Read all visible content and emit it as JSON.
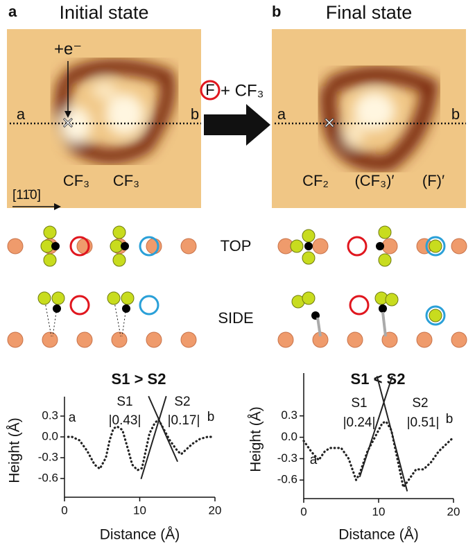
{
  "panels": [
    {
      "letter": "a",
      "title": "Initial state",
      "charge": "+e⁻",
      "end_a": "a",
      "end_b": "b",
      "label_1": "CF₃",
      "label_2": "CF₃",
      "direction": "[11̄0]"
    },
    {
      "letter": "b",
      "title": "Final state",
      "end_a": "a",
      "end_b": "b",
      "label_1": "CF₂",
      "label_2": "(CF₃)′",
      "label_3": "(F)′"
    }
  ],
  "reaction": {
    "circled": "F",
    "rest": "+ CF₃"
  },
  "views": {
    "top": "TOP",
    "side": "SIDE"
  },
  "chart_data": [
    {
      "type": "line",
      "title": "S1 > S2",
      "x_label": "Distance (Å)",
      "y_label": "Height (Å)",
      "annotations": [
        "S1",
        "|0.43|",
        "S2",
        "|0.17|",
        "a",
        "b"
      ],
      "xlim": [
        0,
        20
      ],
      "ylim": [
        -0.87,
        0.58
      ],
      "xticks": [
        0,
        10,
        20
      ],
      "yticks": [
        0.3,
        {
          "value": 0,
          "label": "0.0"
        },
        -0.3,
        -0.6
      ],
      "series": [
        {
          "color": "#222",
          "style": "dotted",
          "x": [
            0.5,
            1,
            2,
            3,
            4,
            4.7,
            5.5,
            6,
            6.5,
            7,
            7.7,
            8.5,
            9,
            9.7,
            10.3,
            10.8,
            11.3,
            12,
            12.5,
            13,
            14,
            15,
            15.5,
            16,
            17,
            18,
            19,
            19.8
          ],
          "values": [
            0.0,
            0.0,
            -0.05,
            -0.2,
            -0.4,
            -0.46,
            -0.3,
            -0.05,
            0.12,
            0.15,
            0.1,
            -0.2,
            -0.4,
            -0.48,
            -0.45,
            -0.2,
            0.05,
            0.2,
            0.25,
            0.15,
            -0.05,
            -0.2,
            -0.25,
            -0.2,
            -0.1,
            -0.03,
            0.0,
            0.0
          ]
        },
        {
          "color": "#222",
          "style": "solid",
          "x": [
            10.2,
            13.5
          ],
          "values": [
            -0.6,
            0.58
          ]
        },
        {
          "color": "#222",
          "style": "solid",
          "x": [
            11.2,
            15
          ],
          "values": [
            0.58,
            -0.35
          ]
        }
      ]
    },
    {
      "type": "line",
      "title": "S1 < S2",
      "x_label": "Distance (Å)",
      "y_label": "Height (Å)",
      "annotations": [
        "S1",
        "|0.24|",
        "S2",
        "|0.51|",
        "a",
        "b"
      ],
      "xlim": [
        0,
        20
      ],
      "ylim": [
        -0.86,
        0.9
      ],
      "xticks": [
        0,
        10,
        20
      ],
      "yticks": [
        0.3,
        {
          "value": 0,
          "label": "0.0"
        },
        -0.3,
        -0.6
      ],
      "series": [
        {
          "color": "#222",
          "style": "dotted",
          "x": [
            0,
            1,
            2,
            2.8,
            3.5,
            5,
            6,
            7,
            7.5,
            8.5,
            9.5,
            10.5,
            11,
            11.7,
            12.5,
            13.3,
            14,
            15,
            16,
            17,
            18,
            19,
            19.8
          ],
          "values": [
            -0.05,
            -0.2,
            -0.32,
            -0.2,
            -0.15,
            -0.15,
            -0.3,
            -0.6,
            -0.5,
            -0.2,
            0.0,
            0.2,
            0.22,
            0.1,
            -0.3,
            -0.7,
            -0.6,
            -0.45,
            -0.45,
            -0.35,
            -0.2,
            -0.1,
            -0.02
          ]
        },
        {
          "color": "#222",
          "style": "solid",
          "x": [
            7.5,
            11.8
          ],
          "values": [
            -0.55,
            0.85
          ]
        },
        {
          "color": "#222",
          "style": "solid",
          "x": [
            9.8,
            13.8
          ],
          "values": [
            0.85,
            -0.75
          ]
        }
      ]
    }
  ]
}
